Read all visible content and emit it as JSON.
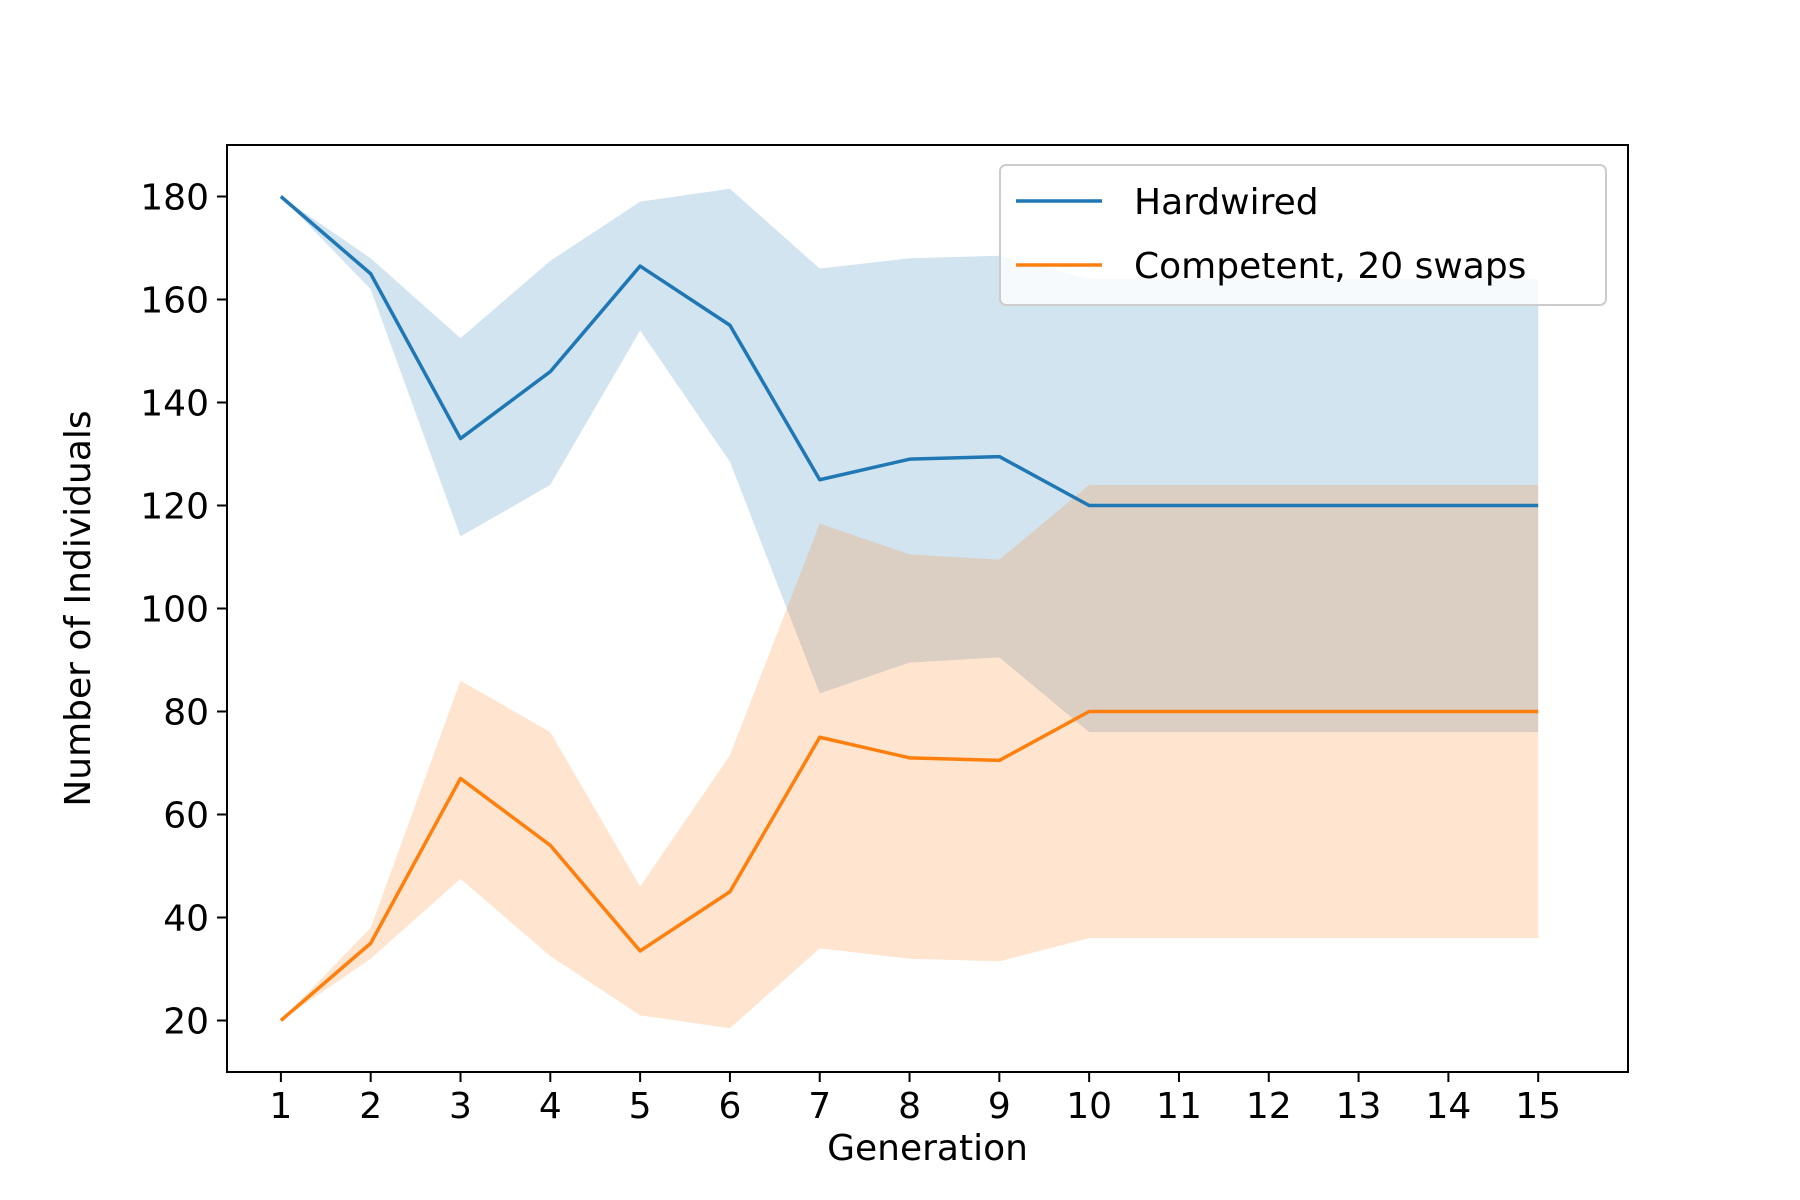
{
  "chart_data": {
    "type": "line",
    "title": "",
    "xlabel": "Generation",
    "ylabel": "Number of Individuals",
    "x": [
      1,
      2,
      3,
      4,
      5,
      6,
      7,
      8,
      9,
      10,
      11,
      12,
      13,
      14,
      15
    ],
    "xlim": [
      0.4,
      16.0
    ],
    "ylim": [
      10,
      190
    ],
    "xticks": [
      1,
      2,
      3,
      4,
      5,
      6,
      7,
      8,
      9,
      10,
      11,
      12,
      13,
      14,
      15
    ],
    "yticks": [
      20,
      40,
      60,
      80,
      100,
      120,
      140,
      160,
      180
    ],
    "grid": false,
    "legend_position": "top-right",
    "series": [
      {
        "name": "Hardwired",
        "color": "#1f77b4",
        "band_color": "#1f77b4",
        "values": [
          180,
          165,
          133,
          146,
          166.5,
          155,
          125,
          129,
          129.5,
          120,
          120,
          120,
          120,
          120,
          120
        ],
        "upper": [
          180,
          168,
          152.5,
          167.5,
          179,
          181.5,
          166,
          168,
          168.5,
          164,
          164,
          164,
          164,
          164,
          164
        ],
        "lower": [
          180,
          162,
          114,
          124,
          154,
          128.5,
          83.5,
          89.5,
          90.5,
          76,
          76,
          76,
          76,
          76,
          76
        ]
      },
      {
        "name": "Competent, 20 swaps",
        "color": "#ff7f0e",
        "band_color": "#ff7f0e",
        "values": [
          20,
          35,
          67,
          54,
          33.5,
          45,
          75,
          71,
          70.5,
          80,
          80,
          80,
          80,
          80,
          80
        ],
        "upper": [
          20,
          38,
          86,
          76,
          46,
          71.5,
          116.5,
          110.5,
          109.5,
          124,
          124,
          124,
          124,
          124,
          124
        ],
        "lower": [
          20,
          32,
          47.5,
          32.5,
          21,
          18.5,
          34,
          32,
          31.5,
          36,
          36,
          36,
          36,
          36,
          36
        ]
      }
    ]
  }
}
